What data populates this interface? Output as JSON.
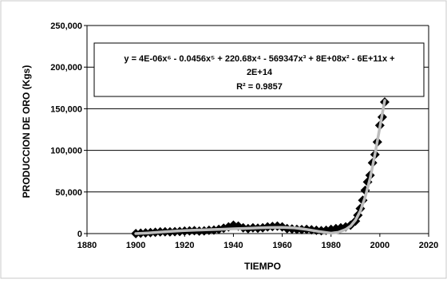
{
  "chart_data": {
    "type": "scatter",
    "xlabel": "TIEMPO",
    "ylabel": "PRODUCCION DE ORO (Kgs)",
    "xlim": [
      1880,
      2020
    ],
    "ylim": [
      0,
      250000
    ],
    "x_ticks": [
      "1880",
      "1900",
      "1920",
      "1940",
      "1960",
      "1980",
      "2000",
      "2020"
    ],
    "y_ticks": [
      "0",
      "50,000",
      "100,000",
      "150,000",
      "200,000",
      "250,000"
    ],
    "grid": "horizontal",
    "marker": "diamond",
    "marker_color": "#000000",
    "trendline": {
      "kind": "polynomial",
      "order": 6,
      "color": "#bdbdbd",
      "equation_line1": "y = 4E-06x⁶ - 0.0456x⁵ + 220.68x⁴ - 569347x³ + 8E+08x² - 6E+11x +",
      "equation_line2": "2E+14",
      "r2": "R² = 0.9857"
    },
    "x": [
      1900,
      1902,
      1904,
      1906,
      1908,
      1910,
      1912,
      1914,
      1916,
      1918,
      1920,
      1922,
      1924,
      1926,
      1928,
      1930,
      1932,
      1934,
      1936,
      1938,
      1940,
      1942,
      1944,
      1946,
      1948,
      1950,
      1952,
      1954,
      1956,
      1958,
      1960,
      1962,
      1964,
      1966,
      1968,
      1970,
      1972,
      1974,
      1976,
      1978,
      1980,
      1982,
      1984,
      1986,
      1988,
      1990,
      1991,
      1992,
      1993,
      1994,
      1995,
      1996,
      1997,
      1998,
      1999,
      2000,
      2001,
      2002
    ],
    "y": [
      0,
      500,
      800,
      1200,
      1500,
      2000,
      2200,
      2000,
      2300,
      2500,
      3000,
      3200,
      3500,
      3000,
      3200,
      4000,
      4200,
      5000,
      6500,
      8000,
      10000,
      9000,
      7000,
      6000,
      7000,
      6500,
      7000,
      8000,
      8500,
      9000,
      8000,
      6000,
      5500,
      5000,
      4800,
      5000,
      4500,
      4000,
      3500,
      4000,
      5000,
      6000,
      7000,
      8000,
      10000,
      15000,
      22000,
      30000,
      40000,
      52000,
      62000,
      70000,
      85000,
      95000,
      110000,
      130000,
      140000,
      158000
    ],
    "trend_x": [
      1900,
      1905,
      1910,
      1915,
      1920,
      1925,
      1930,
      1935,
      1940,
      1945,
      1950,
      1955,
      1960,
      1965,
      1970,
      1975,
      1980,
      1983,
      1986,
      1988,
      1990,
      1992,
      1994,
      1996,
      1998,
      2000,
      2002
    ],
    "trend_y": [
      0,
      800,
      1800,
      2800,
      3600,
      4200,
      4700,
      5200,
      5700,
      6200,
      6800,
      7300,
      7500,
      6800,
      5000,
      2500,
      500,
      1500,
      5000,
      9000,
      16000,
      27000,
      44000,
      66000,
      95000,
      128000,
      160000
    ]
  }
}
